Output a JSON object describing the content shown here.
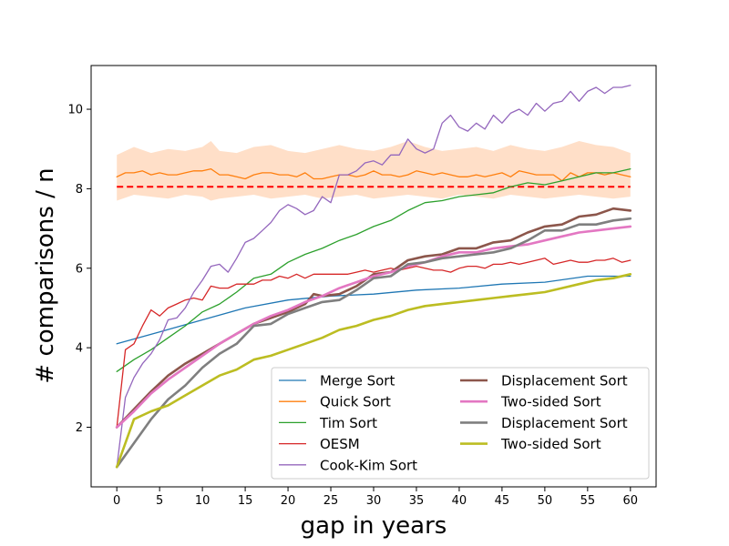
{
  "chart_data": {
    "type": "line",
    "xlabel": "gap in years",
    "ylabel": "# comparisons / n",
    "xlim": [
      -3,
      63
    ],
    "ylim": [
      0.5,
      11.1
    ],
    "xticks": [
      0,
      5,
      10,
      15,
      20,
      25,
      30,
      35,
      40,
      45,
      50,
      55,
      60
    ],
    "yticks": [
      2,
      4,
      6,
      8,
      10
    ],
    "grid": false,
    "legend_placement": "lower-right",
    "reference_line": {
      "y": 8.05,
      "style": "dashed",
      "color": "#ff0000"
    },
    "band": {
      "color": "#ffdfc8",
      "x": [
        0,
        2,
        4,
        6,
        8,
        10,
        11,
        12,
        14,
        16,
        18,
        20,
        22,
        24,
        26,
        28,
        30,
        32,
        34,
        36,
        38,
        40,
        42,
        44,
        46,
        48,
        50,
        52,
        54,
        56,
        58,
        60
      ],
      "upper": [
        8.85,
        9.05,
        8.9,
        9.0,
        8.95,
        9.05,
        9.2,
        8.95,
        8.9,
        9.05,
        9.1,
        8.95,
        8.9,
        9.0,
        9.1,
        9.0,
        8.95,
        9.05,
        9.2,
        9.05,
        8.95,
        9.0,
        9.05,
        8.95,
        9.1,
        9.0,
        8.95,
        9.05,
        9.2,
        9.1,
        9.05,
        8.9
      ],
      "lower": [
        7.7,
        7.85,
        7.8,
        7.75,
        7.85,
        7.8,
        7.7,
        7.75,
        7.8,
        7.85,
        7.75,
        7.8,
        7.85,
        7.75,
        7.8,
        7.85,
        7.75,
        7.8,
        7.85,
        7.8,
        7.75,
        7.85,
        7.8,
        7.75,
        7.85,
        7.8,
        7.75,
        7.8,
        7.85,
        7.8,
        7.75,
        7.8
      ]
    },
    "series": [
      {
        "name": "Merge Sort",
        "color": "#1f77b4",
        "width": 1.3,
        "x": [
          0,
          5,
          10,
          15,
          20,
          25,
          30,
          35,
          40,
          45,
          50,
          55,
          60
        ],
        "y": [
          4.1,
          4.4,
          4.7,
          5.0,
          5.2,
          5.3,
          5.35,
          5.45,
          5.5,
          5.6,
          5.65,
          5.8,
          5.8
        ]
      },
      {
        "name": "Quick Sort",
        "color": "#ff7f0e",
        "width": 1.3,
        "x": [
          0,
          1,
          2,
          3,
          4,
          5,
          6,
          7,
          8,
          9,
          10,
          11,
          12,
          13,
          14,
          15,
          16,
          17,
          18,
          19,
          20,
          21,
          22,
          23,
          24,
          25,
          26,
          27,
          28,
          29,
          30,
          31,
          32,
          33,
          34,
          35,
          36,
          37,
          38,
          39,
          40,
          41,
          42,
          43,
          44,
          45,
          46,
          47,
          48,
          49,
          50,
          51,
          52,
          53,
          54,
          55,
          56,
          57,
          58,
          59,
          60
        ],
        "y": [
          8.3,
          8.4,
          8.4,
          8.45,
          8.35,
          8.4,
          8.35,
          8.35,
          8.4,
          8.45,
          8.45,
          8.5,
          8.35,
          8.35,
          8.3,
          8.25,
          8.35,
          8.4,
          8.4,
          8.35,
          8.35,
          8.3,
          8.4,
          8.25,
          8.25,
          8.3,
          8.35,
          8.35,
          8.3,
          8.35,
          8.45,
          8.35,
          8.35,
          8.3,
          8.35,
          8.45,
          8.4,
          8.35,
          8.4,
          8.35,
          8.3,
          8.3,
          8.35,
          8.3,
          8.35,
          8.4,
          8.3,
          8.45,
          8.4,
          8.35,
          8.35,
          8.35,
          8.2,
          8.4,
          8.3,
          8.4,
          8.4,
          8.35,
          8.4,
          8.35,
          8.3
        ]
      },
      {
        "name": "Tim Sort",
        "color": "#2ca02c",
        "width": 1.3,
        "x": [
          0,
          2,
          4,
          6,
          8,
          10,
          12,
          14,
          16,
          18,
          20,
          22,
          24,
          26,
          28,
          30,
          32,
          34,
          36,
          38,
          40,
          42,
          44,
          46,
          48,
          50,
          52,
          54,
          56,
          58,
          60
        ],
        "y": [
          3.4,
          3.7,
          3.95,
          4.25,
          4.55,
          4.9,
          5.1,
          5.4,
          5.75,
          5.85,
          6.15,
          6.35,
          6.5,
          6.7,
          6.85,
          7.05,
          7.2,
          7.45,
          7.65,
          7.7,
          7.8,
          7.85,
          7.9,
          8.05,
          8.15,
          8.1,
          8.2,
          8.3,
          8.4,
          8.4,
          8.5
        ]
      },
      {
        "name": "OESM",
        "color": "#d62728",
        "width": 1.3,
        "x": [
          0,
          1,
          2,
          3,
          4,
          5,
          6,
          7,
          8,
          9,
          10,
          11,
          12,
          13,
          14,
          15,
          16,
          17,
          18,
          19,
          20,
          21,
          22,
          23,
          24,
          25,
          26,
          27,
          28,
          29,
          30,
          31,
          32,
          33,
          34,
          35,
          36,
          37,
          38,
          39,
          40,
          41,
          42,
          43,
          44,
          45,
          46,
          47,
          48,
          49,
          50,
          51,
          52,
          53,
          54,
          55,
          56,
          57,
          58,
          59,
          60
        ],
        "y": [
          2.0,
          3.95,
          4.1,
          4.55,
          4.95,
          4.8,
          5.0,
          5.1,
          5.2,
          5.25,
          5.2,
          5.55,
          5.5,
          5.5,
          5.6,
          5.6,
          5.6,
          5.7,
          5.7,
          5.8,
          5.75,
          5.85,
          5.75,
          5.85,
          5.85,
          5.85,
          5.85,
          5.85,
          5.9,
          5.95,
          5.9,
          5.95,
          6.0,
          5.95,
          6.0,
          6.05,
          6.0,
          5.95,
          5.95,
          5.9,
          6.0,
          6.05,
          6.05,
          6.0,
          6.1,
          6.1,
          6.15,
          6.1,
          6.15,
          6.2,
          6.25,
          6.1,
          6.15,
          6.2,
          6.15,
          6.15,
          6.2,
          6.2,
          6.25,
          6.15,
          6.2
        ]
      },
      {
        "name": "Cook-Kim Sort",
        "color": "#9467bd",
        "width": 1.3,
        "x": [
          0,
          1,
          2,
          3,
          4,
          5,
          6,
          7,
          8,
          9,
          10,
          11,
          12,
          13,
          14,
          15,
          16,
          17,
          18,
          19,
          20,
          21,
          22,
          23,
          24,
          25,
          26,
          27,
          28,
          29,
          30,
          31,
          32,
          33,
          34,
          35,
          36,
          37,
          38,
          39,
          40,
          41,
          42,
          43,
          44,
          45,
          46,
          47,
          48,
          49,
          50,
          51,
          52,
          53,
          54,
          55,
          56,
          57,
          58,
          59,
          60
        ],
        "y": [
          1.0,
          2.75,
          3.25,
          3.6,
          3.85,
          4.2,
          4.7,
          4.75,
          5.0,
          5.4,
          5.7,
          6.05,
          6.1,
          5.9,
          6.25,
          6.65,
          6.75,
          6.95,
          7.15,
          7.45,
          7.6,
          7.5,
          7.35,
          7.45,
          7.8,
          7.65,
          8.35,
          8.35,
          8.45,
          8.65,
          8.7,
          8.6,
          8.85,
          8.85,
          9.25,
          9.0,
          8.9,
          9.0,
          9.65,
          9.85,
          9.55,
          9.45,
          9.65,
          9.5,
          9.85,
          9.65,
          9.9,
          10.0,
          9.85,
          10.15,
          9.95,
          10.15,
          10.2,
          10.45,
          10.2,
          10.45,
          10.55,
          10.4,
          10.55,
          10.55,
          10.6
        ]
      },
      {
        "name": "Displacement Sort",
        "color": "#8c564b",
        "width": 2.6,
        "x": [
          0,
          2,
          4,
          6,
          8,
          10,
          12,
          14,
          16,
          18,
          20,
          22,
          23,
          24,
          26,
          28,
          30,
          32,
          34,
          36,
          38,
          40,
          42,
          44,
          46,
          48,
          50,
          52,
          54,
          56,
          58,
          60
        ],
        "y": [
          2.0,
          2.45,
          2.9,
          3.3,
          3.6,
          3.85,
          4.1,
          4.35,
          4.6,
          4.75,
          4.9,
          5.1,
          5.35,
          5.3,
          5.35,
          5.55,
          5.85,
          5.9,
          6.2,
          6.3,
          6.35,
          6.5,
          6.5,
          6.65,
          6.7,
          6.9,
          7.05,
          7.1,
          7.3,
          7.35,
          7.5,
          7.45
        ]
      },
      {
        "name": "Two-sided Sort",
        "color": "#e377c2",
        "width": 2.6,
        "x": [
          0,
          2,
          4,
          6,
          8,
          10,
          12,
          14,
          16,
          18,
          20,
          22,
          24,
          26,
          28,
          30,
          32,
          34,
          36,
          38,
          40,
          42,
          44,
          46,
          48,
          50,
          52,
          54,
          56,
          58,
          60
        ],
        "y": [
          2.0,
          2.4,
          2.85,
          3.2,
          3.5,
          3.8,
          4.1,
          4.35,
          4.6,
          4.8,
          4.95,
          5.15,
          5.3,
          5.5,
          5.65,
          5.8,
          5.9,
          6.05,
          6.15,
          6.3,
          6.4,
          6.4,
          6.5,
          6.55,
          6.6,
          6.7,
          6.8,
          6.9,
          6.95,
          7.0,
          7.05
        ]
      },
      {
        "name": "Displacement Sort",
        "color": "#7f7f7f",
        "width": 2.6,
        "x": [
          0,
          2,
          4,
          6,
          8,
          10,
          12,
          14,
          16,
          18,
          20,
          22,
          24,
          26,
          28,
          30,
          32,
          34,
          36,
          38,
          40,
          42,
          44,
          46,
          48,
          50,
          52,
          54,
          56,
          58,
          60
        ],
        "y": [
          1.0,
          1.6,
          2.2,
          2.7,
          3.05,
          3.5,
          3.85,
          4.1,
          4.55,
          4.6,
          4.85,
          5.0,
          5.15,
          5.2,
          5.45,
          5.75,
          5.8,
          6.1,
          6.15,
          6.25,
          6.3,
          6.35,
          6.4,
          6.5,
          6.7,
          6.95,
          6.95,
          7.1,
          7.1,
          7.2,
          7.25
        ]
      },
      {
        "name": "Two-sided Sort",
        "color": "#bcbd22",
        "width": 2.6,
        "x": [
          0,
          2,
          4,
          6,
          8,
          10,
          12,
          14,
          16,
          18,
          20,
          22,
          24,
          26,
          28,
          30,
          32,
          34,
          36,
          38,
          40,
          42,
          44,
          46,
          48,
          50,
          52,
          54,
          56,
          58,
          60
        ],
        "y": [
          1.0,
          2.2,
          2.4,
          2.55,
          2.8,
          3.05,
          3.3,
          3.45,
          3.7,
          3.8,
          3.95,
          4.1,
          4.25,
          4.45,
          4.55,
          4.7,
          4.8,
          4.95,
          5.05,
          5.1,
          5.15,
          5.2,
          5.25,
          5.3,
          5.35,
          5.4,
          5.5,
          5.6,
          5.7,
          5.75,
          5.85
        ]
      }
    ]
  }
}
